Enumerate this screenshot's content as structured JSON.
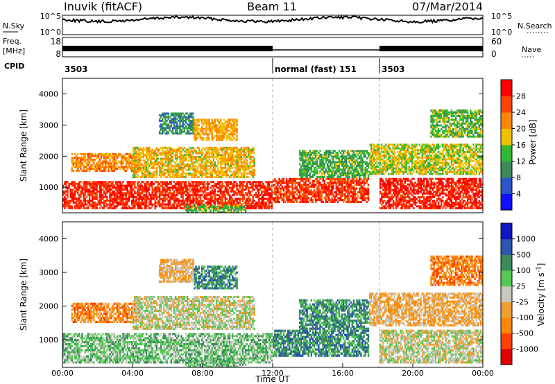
{
  "header": {
    "station": "Inuvik (fitACF)",
    "beam": "Beam 11",
    "date": "07/Mar/2014"
  },
  "noise_panel": {
    "left_label": "N.Sky",
    "right_label": "N.Search",
    "left_ticks": [
      "10^5",
      "10^0"
    ],
    "right_ticks": [
      "10^5",
      "10^0"
    ]
  },
  "freq_panel": {
    "left_label_line1": "Freq.",
    "left_label_line2": "[MHz]",
    "right_label": "Nave",
    "left_ticks": [
      "18",
      "8"
    ],
    "right_ticks": [
      "60",
      "0"
    ]
  },
  "cpid_panel": {
    "label": "CPID",
    "segments": [
      {
        "start": 0,
        "end": 12.0,
        "text": "3503"
      },
      {
        "start": 12.0,
        "end": 18.1,
        "text": "normal (fast) 151"
      },
      {
        "start": 18.1,
        "end": 24,
        "text": "3503"
      }
    ]
  },
  "colors": {
    "power_scale": [
      "#1010ff",
      "#2b55c8",
      "#3a8a5a",
      "#33b833",
      "#f2c000",
      "#ff8800",
      "#ff4400",
      "#ff0000"
    ],
    "velocity_scale": [
      "#e00000",
      "#ff4000",
      "#ff8800",
      "#f0a030",
      "#c8c8c0",
      "#55c855",
      "#3a8a5a",
      "#2b55b0",
      "#1018c0"
    ]
  },
  "chart_data": [
    {
      "type": "heatmap",
      "title": "Power",
      "quantity": "Power",
      "ylabel": "Slant Range [km]",
      "xlabel": "",
      "x_range_hours": [
        0,
        24
      ],
      "ylim": [
        180,
        4500
      ],
      "yticks": [
        "1000",
        "2000",
        "3000",
        "4000"
      ],
      "colorbar_label": "Power [dB]",
      "colorbar_ticks": [
        "4",
        "8",
        "12",
        "16",
        "20",
        "24",
        "28"
      ],
      "colorbar_range": [
        0,
        32
      ],
      "bands": [
        {
          "t0": 0.0,
          "t1": 12.0,
          "r0": 300,
          "r1": 1200,
          "v": 26
        },
        {
          "t0": 12.0,
          "t1": 17.5,
          "r0": 500,
          "r1": 1300,
          "v": 25
        },
        {
          "t0": 18.1,
          "t1": 24.0,
          "r0": 300,
          "r1": 1300,
          "v": 27
        },
        {
          "t0": 0.5,
          "t1": 4.5,
          "r0": 1500,
          "r1": 2100,
          "v": 20
        },
        {
          "t0": 4.0,
          "t1": 11.0,
          "r0": 1300,
          "r1": 2300,
          "v": 17
        },
        {
          "t0": 13.5,
          "t1": 17.5,
          "r0": 1300,
          "r1": 2200,
          "v": 11
        },
        {
          "t0": 17.5,
          "t1": 24.0,
          "r0": 1400,
          "r1": 2400,
          "v": 15
        },
        {
          "t0": 5.5,
          "t1": 7.5,
          "r0": 2700,
          "r1": 3400,
          "v": 8
        },
        {
          "t0": 7.5,
          "t1": 10.0,
          "r0": 2500,
          "r1": 3200,
          "v": 18
        },
        {
          "t0": 21.0,
          "t1": 24.0,
          "r0": 2600,
          "r1": 3500,
          "v": 12
        },
        {
          "t0": 7.0,
          "t1": 10.5,
          "r0": 180,
          "r1": 450,
          "v": 12
        }
      ]
    },
    {
      "type": "heatmap",
      "title": "Velocity",
      "quantity": "Velocity",
      "ylabel": "Slant Range [km]",
      "xlabel": "Time UT",
      "x_range_hours": [
        0,
        24
      ],
      "xticks": [
        "00:00",
        "04:00",
        "08:00",
        "12:00",
        "16:00",
        "20:00",
        "00:00"
      ],
      "ylim": [
        180,
        4500
      ],
      "yticks": [
        "1000",
        "2000",
        "3000",
        "4000"
      ],
      "colorbar_label": "Velocity [m s^-1]",
      "colorbar_ticks": [
        "1000",
        "500",
        "100",
        "25",
        "-25",
        "-100",
        "-500",
        "-1000"
      ],
      "bands": [
        {
          "t0": 0.0,
          "t1": 12.0,
          "r0": 300,
          "r1": 1200,
          "v": 5
        },
        {
          "t0": 12.0,
          "t1": 17.5,
          "r0": 500,
          "r1": 1300,
          "v": 6
        },
        {
          "t0": 18.1,
          "t1": 24.0,
          "r0": 300,
          "r1": 1300,
          "v": 4
        },
        {
          "t0": 0.5,
          "t1": 4.5,
          "r0": 1500,
          "r1": 2100,
          "v": 2
        },
        {
          "t0": 4.0,
          "t1": 11.0,
          "r0": 1300,
          "r1": 2300,
          "v": 4
        },
        {
          "t0": 13.5,
          "t1": 17.5,
          "r0": 1300,
          "r1": 2200,
          "v": 6
        },
        {
          "t0": 17.5,
          "t1": 24.0,
          "r0": 1400,
          "r1": 2400,
          "v": 3
        },
        {
          "t0": 5.5,
          "t1": 7.5,
          "r0": 2700,
          "r1": 3400,
          "v": 3
        },
        {
          "t0": 7.5,
          "t1": 10.0,
          "r0": 2500,
          "r1": 3200,
          "v": 6
        },
        {
          "t0": 21.0,
          "t1": 24.0,
          "r0": 2600,
          "r1": 3500,
          "v": 2
        },
        {
          "t0": 7.0,
          "t1": 10.5,
          "r0": 180,
          "r1": 450,
          "v": 5
        }
      ]
    }
  ]
}
